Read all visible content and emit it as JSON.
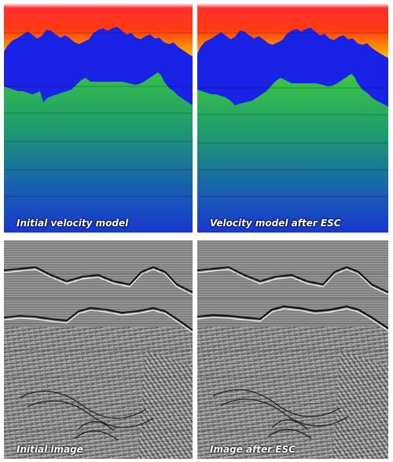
{
  "captions": {
    "initial_velocity": "Initial velocity model",
    "velocity_after": "Velocity model after ESC",
    "initial_image": "Initial image",
    "image_after": "Image after ESC"
  },
  "colors": {
    "top_red": "#ff1a1a",
    "top_orange": "#ff9a00",
    "salt_blue": "#1a22e6",
    "green": "#3cc83c",
    "deep_blue": "#1838c8",
    "yellow": "#ffe000"
  }
}
